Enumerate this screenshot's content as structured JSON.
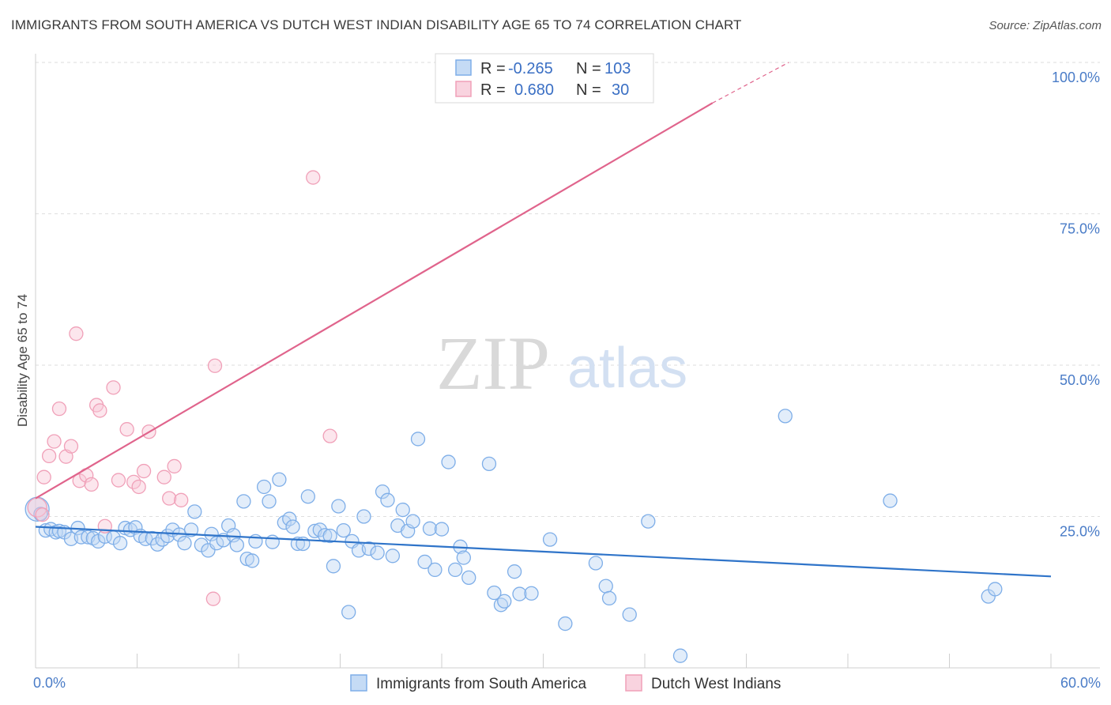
{
  "title": "IMMIGRANTS FROM SOUTH AMERICA VS DUTCH WEST INDIAN DISABILITY AGE 65 TO 74 CORRELATION CHART",
  "source": "Source: ZipAtlas.com",
  "watermark": {
    "zip": "ZIP",
    "atlas": "atlas"
  },
  "legend": {
    "rows": [
      {
        "r_label": "R =",
        "r_value": "-0.265",
        "n_label": "N =",
        "n_value": "103",
        "color": "#7eaee8"
      },
      {
        "r_label": "R =",
        "r_value": "0.680",
        "n_label": "N =",
        "n_value": "30",
        "color": "#f0a0b8"
      }
    ]
  },
  "chart_data": {
    "type": "scatter",
    "xlabel": "",
    "ylabel": "Disability Age 65 to 74",
    "xlim": [
      0,
      60
    ],
    "ylim": [
      0,
      100
    ],
    "x_tick_labels": [
      "0.0%",
      "60.0%"
    ],
    "y_tick_labels": [
      "100.0%",
      "75.0%",
      "50.0%",
      "25.0%"
    ],
    "y_ticks": [
      100,
      75,
      50,
      25
    ],
    "grid": true,
    "legend_position": "bottom",
    "series": [
      {
        "name": "Immigrants from South America",
        "color": "#7eaee8",
        "trend_color": "#2f74c9",
        "trend": {
          "x": [
            0,
            60
          ],
          "y": [
            23.3,
            15.1
          ]
        },
        "points": [
          [
            0.1,
            26.2
          ],
          [
            0.3,
            25.4
          ],
          [
            0.6,
            22.7
          ],
          [
            0.9,
            22.9
          ],
          [
            1.2,
            22.4
          ],
          [
            1.4,
            22.6
          ],
          [
            1.7,
            22.4
          ],
          [
            2.1,
            21.3
          ],
          [
            2.5,
            23.1
          ],
          [
            2.7,
            21.6
          ],
          [
            3.1,
            21.6
          ],
          [
            3.4,
            21.4
          ],
          [
            3.7,
            20.9
          ],
          [
            4.1,
            21.7
          ],
          [
            4.6,
            21.5
          ],
          [
            5.0,
            20.6
          ],
          [
            5.3,
            23.1
          ],
          [
            5.6,
            22.8
          ],
          [
            5.9,
            23.2
          ],
          [
            6.2,
            21.8
          ],
          [
            6.5,
            21.3
          ],
          [
            6.9,
            21.4
          ],
          [
            7.2,
            20.4
          ],
          [
            7.5,
            21.2
          ],
          [
            7.8,
            21.8
          ],
          [
            8.1,
            22.8
          ],
          [
            8.5,
            22.0
          ],
          [
            8.8,
            20.6
          ],
          [
            9.2,
            22.8
          ],
          [
            9.4,
            25.8
          ],
          [
            9.8,
            20.3
          ],
          [
            10.2,
            19.4
          ],
          [
            10.4,
            22.1
          ],
          [
            10.7,
            20.6
          ],
          [
            11.1,
            21.1
          ],
          [
            11.4,
            23.5
          ],
          [
            11.7,
            21.9
          ],
          [
            11.9,
            20.3
          ],
          [
            12.3,
            27.5
          ],
          [
            12.5,
            18.0
          ],
          [
            12.8,
            17.7
          ],
          [
            13.0,
            20.9
          ],
          [
            13.5,
            29.9
          ],
          [
            13.8,
            27.5
          ],
          [
            14.0,
            20.8
          ],
          [
            14.4,
            31.1
          ],
          [
            14.7,
            24.0
          ],
          [
            15.0,
            24.6
          ],
          [
            15.2,
            23.3
          ],
          [
            15.5,
            20.5
          ],
          [
            15.8,
            20.5
          ],
          [
            16.1,
            28.3
          ],
          [
            16.5,
            22.6
          ],
          [
            16.8,
            22.8
          ],
          [
            17.1,
            21.9
          ],
          [
            17.4,
            21.8
          ],
          [
            17.6,
            16.8
          ],
          [
            17.9,
            26.7
          ],
          [
            18.2,
            22.7
          ],
          [
            18.5,
            9.2
          ],
          [
            18.7,
            20.9
          ],
          [
            19.1,
            19.4
          ],
          [
            19.4,
            25.0
          ],
          [
            19.7,
            19.7
          ],
          [
            20.2,
            19.0
          ],
          [
            20.5,
            29.1
          ],
          [
            20.8,
            27.7
          ],
          [
            21.1,
            18.5
          ],
          [
            21.4,
            23.5
          ],
          [
            21.7,
            26.1
          ],
          [
            22.0,
            22.6
          ],
          [
            22.3,
            24.2
          ],
          [
            22.6,
            37.8
          ],
          [
            23.0,
            17.5
          ],
          [
            23.3,
            23.0
          ],
          [
            23.6,
            16.2
          ],
          [
            24.0,
            22.9
          ],
          [
            24.4,
            34.0
          ],
          [
            24.8,
            16.2
          ],
          [
            25.1,
            20.0
          ],
          [
            25.3,
            18.2
          ],
          [
            25.6,
            14.9
          ],
          [
            26.8,
            33.7
          ],
          [
            27.1,
            12.4
          ],
          [
            27.5,
            10.4
          ],
          [
            27.7,
            11.0
          ],
          [
            28.3,
            15.9
          ],
          [
            28.6,
            12.2
          ],
          [
            29.3,
            12.3
          ],
          [
            30.4,
            21.2
          ],
          [
            31.3,
            7.3
          ],
          [
            33.1,
            17.3
          ],
          [
            33.7,
            13.5
          ],
          [
            33.9,
            11.5
          ],
          [
            35.1,
            8.8
          ],
          [
            36.2,
            24.2
          ],
          [
            38.1,
            2.0
          ],
          [
            44.3,
            41.6
          ],
          [
            50.5,
            27.6
          ],
          [
            56.3,
            11.8
          ],
          [
            56.7,
            13.0
          ]
        ]
      },
      {
        "name": "Dutch West Indians",
        "color": "#f0a0b8",
        "trend_color": "#e0648c",
        "trend": {
          "x": [
            0,
            40
          ],
          "y": [
            28.0,
            93.3
          ]
        },
        "trend_dashed": {
          "x": [
            40,
            44.5
          ],
          "y": [
            93.3,
            100.0
          ]
        },
        "points": [
          [
            0.1,
            26.5
          ],
          [
            0.4,
            25.3
          ],
          [
            0.5,
            31.5
          ],
          [
            0.8,
            35.0
          ],
          [
            1.1,
            37.4
          ],
          [
            1.4,
            42.8
          ],
          [
            1.8,
            34.9
          ],
          [
            2.1,
            36.6
          ],
          [
            2.4,
            55.2
          ],
          [
            2.6,
            30.9
          ],
          [
            3.0,
            31.8
          ],
          [
            3.3,
            30.3
          ],
          [
            3.6,
            43.4
          ],
          [
            3.8,
            42.5
          ],
          [
            4.1,
            23.4
          ],
          [
            4.6,
            46.3
          ],
          [
            4.9,
            31.0
          ],
          [
            5.4,
            39.4
          ],
          [
            5.8,
            30.7
          ],
          [
            6.1,
            29.9
          ],
          [
            6.4,
            32.5
          ],
          [
            6.7,
            39.0
          ],
          [
            7.6,
            31.5
          ],
          [
            7.9,
            28.0
          ],
          [
            8.2,
            33.3
          ],
          [
            8.6,
            27.7
          ],
          [
            10.5,
            11.4
          ],
          [
            10.6,
            49.9
          ],
          [
            16.4,
            81.0
          ],
          [
            17.4,
            38.3
          ]
        ]
      }
    ]
  }
}
